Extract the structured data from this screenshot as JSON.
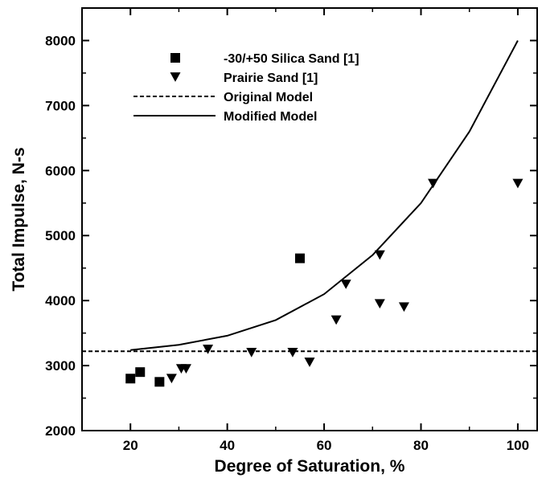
{
  "chart_data": {
    "type": "scatter",
    "title": "",
    "xlabel": "Degree of Saturation, %",
    "ylabel": "Total Impulse, N-s",
    "xlim": [
      10,
      104
    ],
    "ylim": [
      2000,
      8500
    ],
    "x_ticks": [
      "20",
      "40",
      "60",
      "80",
      "100"
    ],
    "y_ticks": [
      "2000",
      "3000",
      "4000",
      "5000",
      "6000",
      "7000",
      "8000"
    ],
    "grid": false,
    "legend_position": "top-left",
    "series": [
      {
        "name": "-30/+50 Silica Sand [1]",
        "marker": "square",
        "points": [
          [
            20,
            2800
          ],
          [
            22,
            2900
          ],
          [
            26,
            2750
          ],
          [
            55,
            4650
          ]
        ]
      },
      {
        "name": "Prairie Sand [1]",
        "marker": "triangle-down",
        "points": [
          [
            28.5,
            2800
          ],
          [
            30.5,
            2950
          ],
          [
            31.5,
            2950
          ],
          [
            36,
            3250
          ],
          [
            45,
            3200
          ],
          [
            53.5,
            3200
          ],
          [
            57,
            3050
          ],
          [
            62.5,
            3700
          ],
          [
            64.5,
            4250
          ],
          [
            71.5,
            4700
          ],
          [
            71.5,
            3950
          ],
          [
            76.5,
            3900
          ],
          [
            82.5,
            5800
          ],
          [
            100,
            5800
          ]
        ]
      },
      {
        "name": "Original Model",
        "line_style": "dashed",
        "points": [
          [
            10,
            3220
          ],
          [
            104,
            3220
          ]
        ]
      },
      {
        "name": "Modified Model",
        "line_style": "solid",
        "points": [
          [
            20,
            3240
          ],
          [
            30,
            3320
          ],
          [
            40,
            3460
          ],
          [
            50,
            3700
          ],
          [
            60,
            4100
          ],
          [
            70,
            4700
          ],
          [
            80,
            5500
          ],
          [
            90,
            6600
          ],
          [
            100,
            8000
          ]
        ]
      }
    ]
  }
}
